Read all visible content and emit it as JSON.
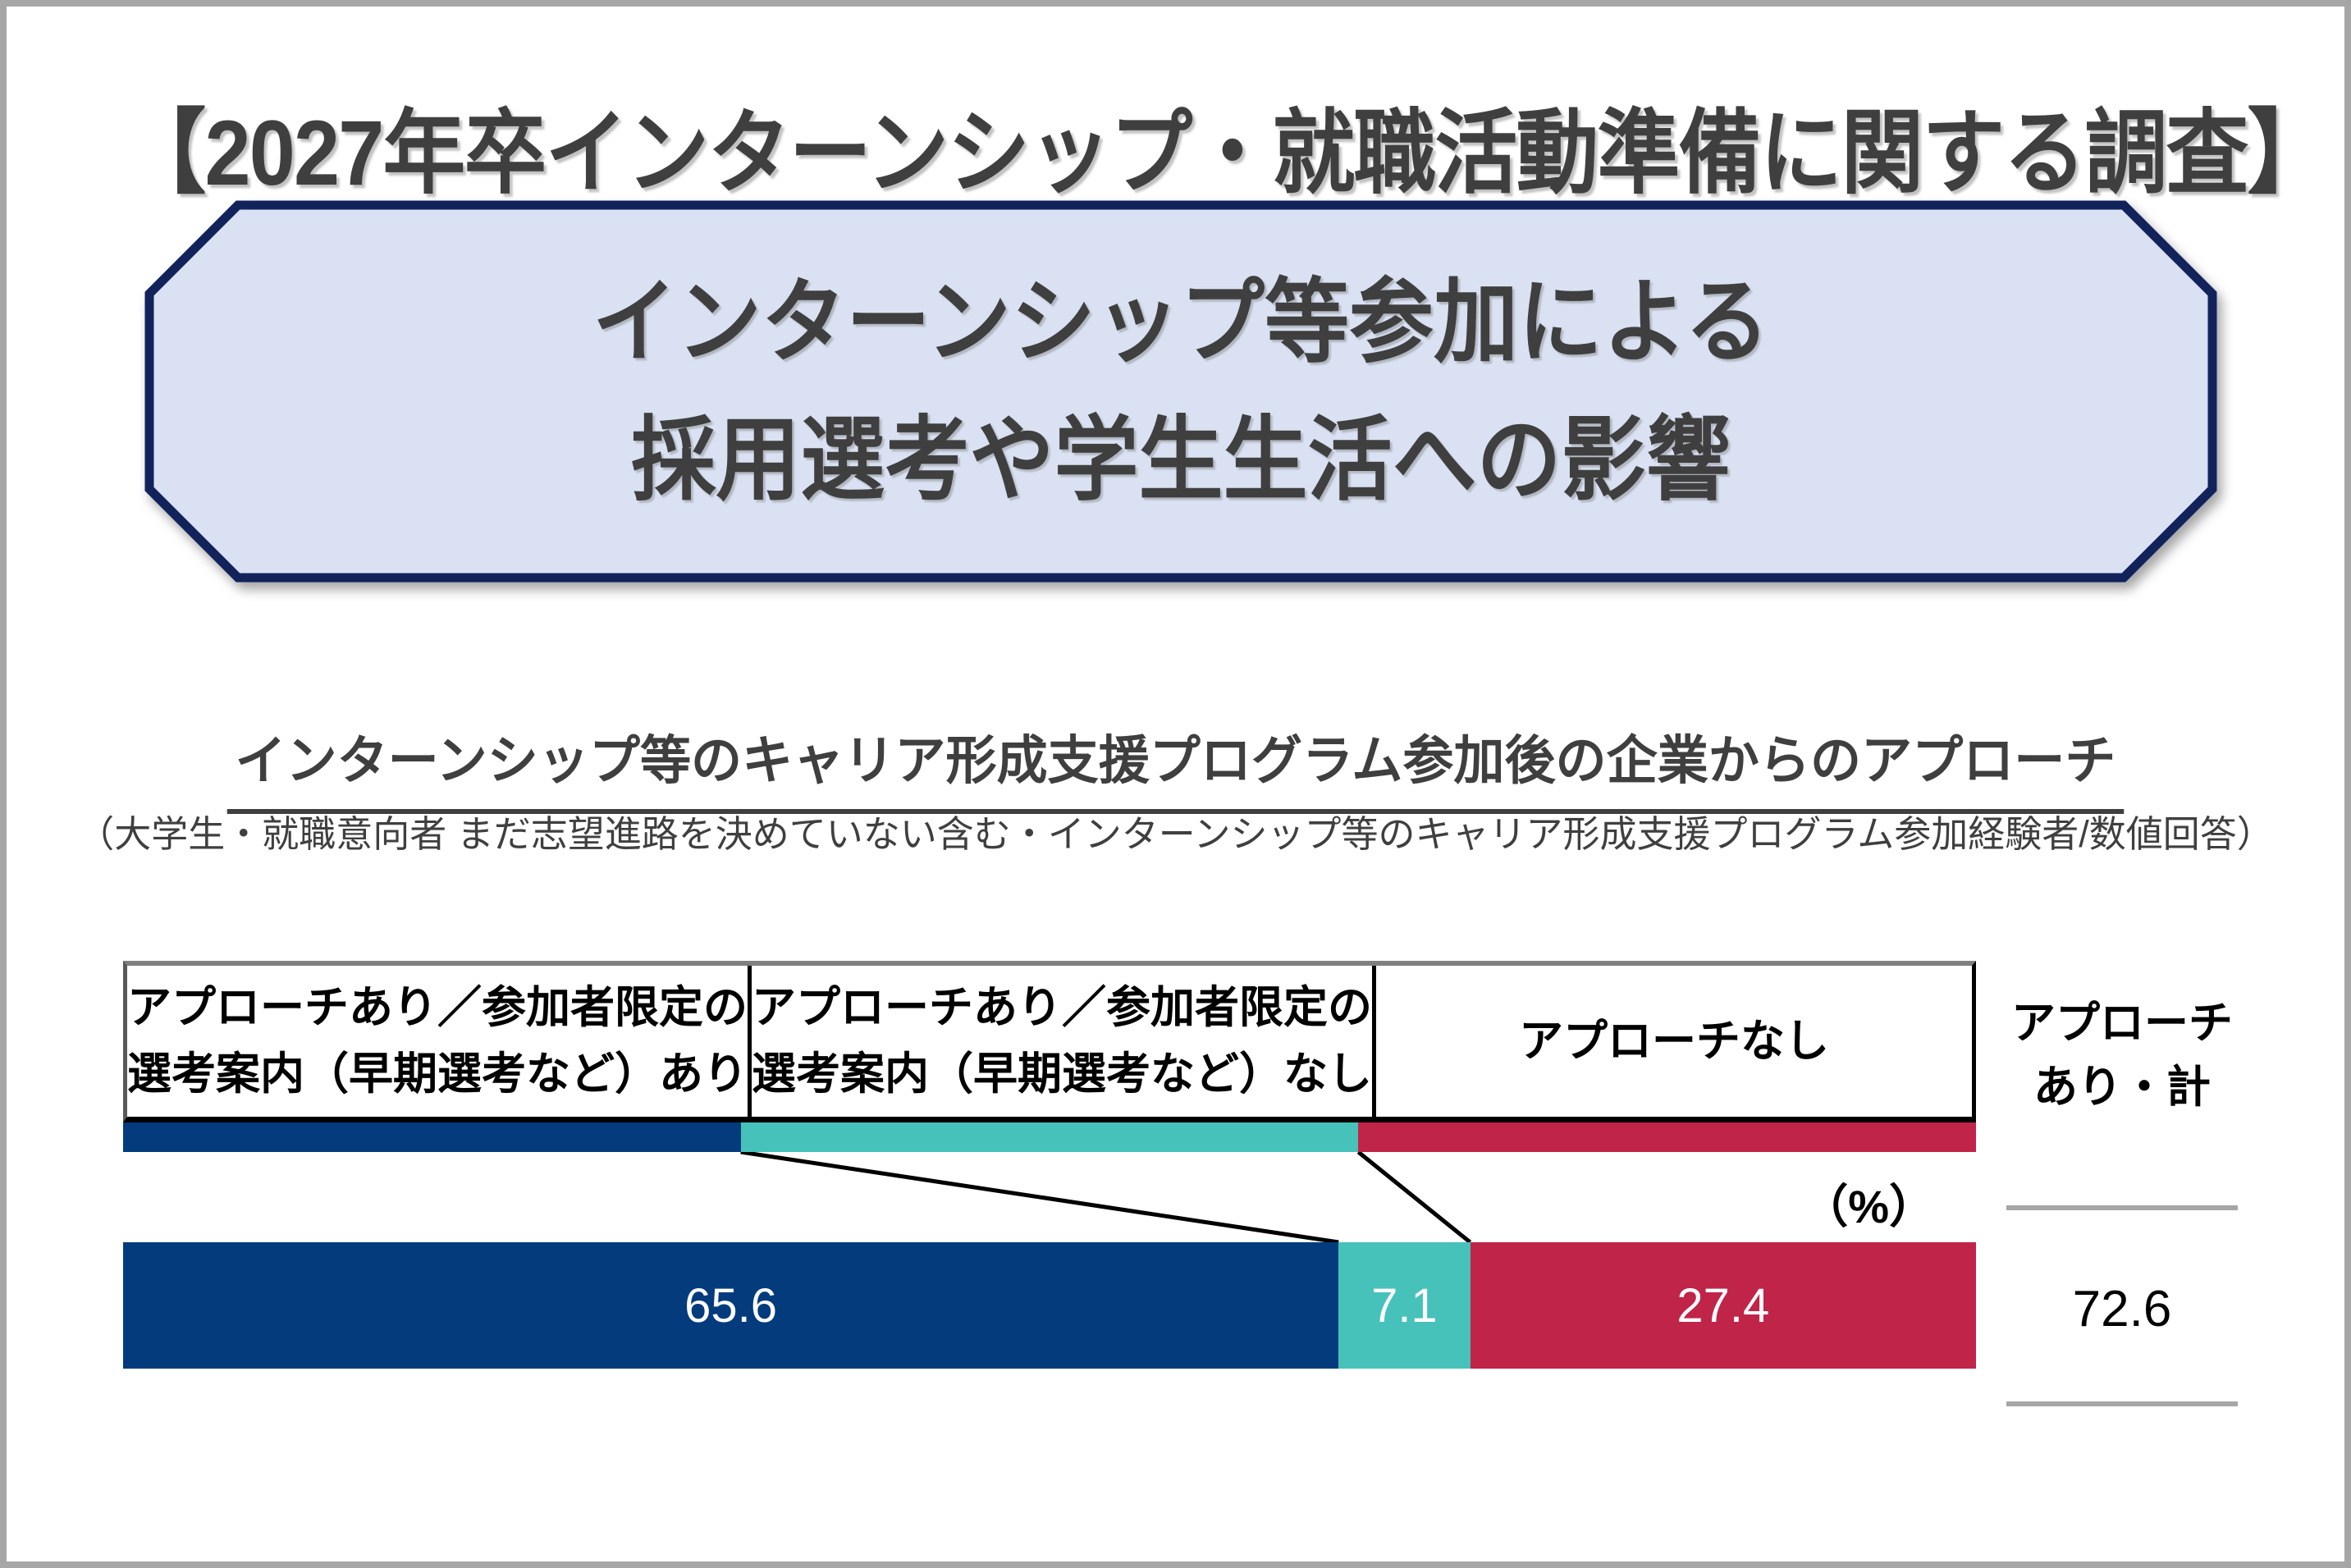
{
  "page_title": "【2027年卒インターンシップ・就職活動準備に関する調査】",
  "banner": {
    "line1": "インターンシップ等参加による",
    "line2": "採用選考や学生生活への影響"
  },
  "section_heading": "インターンシップ等のキャリア形成支援プログラム参加後の企業からのアプローチ",
  "section_caption": "（大学生・就職意向者 まだ志望進路を決めていない含む・インターンシップ等のキャリア形成支援プログラム参加経験者/数値回答）",
  "unit_label": "（%）",
  "colors": {
    "banner_fill": "#d9e1f2",
    "banner_border": "#12235c",
    "frame": "#a6a6a6",
    "body_text": "#3f3f3f",
    "summary_line": "#a6a6a6"
  },
  "chart_data": {
    "type": "bar",
    "stacked": true,
    "orientation": "horizontal",
    "grid": false,
    "xlim": [
      0,
      100
    ],
    "unit": "%",
    "legend_position": "top-table",
    "categories": [
      "インターンシップ等のキャリア形成支援プログラム参加経験者"
    ],
    "series": [
      {
        "name": "アプローチあり／参加者限定の選考案内（早期選考など）あり",
        "legend_lines": [
          "アプローチあり／参加者限定の",
          "選考案内（早期選考など）あり"
        ],
        "color": "#043b7d",
        "values": [
          65.6
        ]
      },
      {
        "name": "アプローチあり／参加者限定の選考案内（早期選考など）なし",
        "legend_lines": [
          "アプローチあり／参加者限定の",
          "選考案内（早期選考など）なし"
        ],
        "color": "#46c2ba",
        "values": [
          7.1
        ]
      },
      {
        "name": "アプローチなし",
        "legend_lines": [
          "アプローチなし"
        ],
        "color": "#c02449",
        "values": [
          27.4
        ]
      }
    ],
    "total": {
      "label_lines": [
        "アプローチ",
        "あり・計"
      ],
      "value": 72.6
    }
  }
}
